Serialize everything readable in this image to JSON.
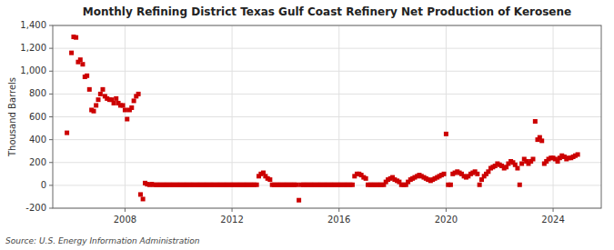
{
  "chart_data": {
    "type": "scatter",
    "title": "Monthly Refining District Texas Gulf Coast Refinery Net Production of Kerosene",
    "ylabel": "Thousand Barrels",
    "annotation": "Source: U.S. Energy Information Administration",
    "color": "#cc0000",
    "marker": "square",
    "grid": true,
    "xlim": [
      2005.3,
      2025.8
    ],
    "xticks": [
      2008,
      2012,
      2016,
      2020,
      2024
    ],
    "ylim": [
      -200,
      1400
    ],
    "yticks": [
      -200,
      0,
      200,
      400,
      600,
      800,
      {
        "value": 1000,
        "label": "1,000"
      },
      {
        "value": 1200,
        "label": "1,200"
      },
      {
        "value": 1400,
        "label": "1,400"
      }
    ],
    "x": [
      2005.83,
      2006.0,
      2006.08,
      2006.17,
      2006.25,
      2006.33,
      2006.42,
      2006.5,
      2006.58,
      2006.67,
      2006.75,
      2006.83,
      2006.92,
      2007.0,
      2007.08,
      2007.17,
      2007.25,
      2007.33,
      2007.42,
      2007.5,
      2007.58,
      2007.67,
      2007.75,
      2007.83,
      2007.92,
      2008.0,
      2008.08,
      2008.17,
      2008.25,
      2008.33,
      2008.42,
      2008.5,
      2008.58,
      2008.67,
      2008.75,
      2008.83,
      2008.92,
      2009.0,
      2009.08,
      2009.17,
      2009.25,
      2009.33,
      2009.42,
      2009.5,
      2009.58,
      2009.67,
      2009.75,
      2009.83,
      2009.92,
      2010.0,
      2010.08,
      2010.17,
      2010.25,
      2010.33,
      2010.42,
      2010.5,
      2010.58,
      2010.67,
      2010.75,
      2010.83,
      2010.92,
      2011.0,
      2011.08,
      2011.17,
      2011.25,
      2011.33,
      2011.42,
      2011.5,
      2011.58,
      2011.67,
      2011.75,
      2011.83,
      2011.92,
      2012.0,
      2012.08,
      2012.17,
      2012.25,
      2012.33,
      2012.42,
      2012.5,
      2012.58,
      2012.67,
      2012.75,
      2012.83,
      2012.92,
      2013.0,
      2013.08,
      2013.17,
      2013.25,
      2013.33,
      2013.42,
      2013.5,
      2013.58,
      2013.67,
      2013.75,
      2013.83,
      2013.92,
      2014.0,
      2014.08,
      2014.17,
      2014.25,
      2014.33,
      2014.42,
      2014.5,
      2014.58,
      2014.67,
      2014.75,
      2014.83,
      2014.92,
      2015.0,
      2015.08,
      2015.17,
      2015.25,
      2015.33,
      2015.42,
      2015.5,
      2015.58,
      2015.67,
      2015.75,
      2015.83,
      2015.92,
      2016.0,
      2016.08,
      2016.17,
      2016.25,
      2016.33,
      2016.42,
      2016.5,
      2016.58,
      2016.67,
      2016.75,
      2016.83,
      2016.92,
      2017.0,
      2017.08,
      2017.17,
      2017.25,
      2017.33,
      2017.42,
      2017.5,
      2017.58,
      2017.67,
      2017.75,
      2017.83,
      2017.92,
      2018.0,
      2018.08,
      2018.17,
      2018.25,
      2018.33,
      2018.42,
      2018.5,
      2018.58,
      2018.67,
      2018.75,
      2018.83,
      2018.92,
      2019.0,
      2019.08,
      2019.17,
      2019.25,
      2019.33,
      2019.42,
      2019.5,
      2019.58,
      2019.67,
      2019.75,
      2019.83,
      2019.92,
      2020.0,
      2020.08,
      2020.17,
      2020.25,
      2020.33,
      2020.42,
      2020.5,
      2020.58,
      2020.67,
      2020.75,
      2020.83,
      2020.92,
      2021.0,
      2021.08,
      2021.17,
      2021.25,
      2021.33,
      2021.42,
      2021.5,
      2021.58,
      2021.67,
      2021.75,
      2021.83,
      2021.92,
      2022.0,
      2022.08,
      2022.17,
      2022.25,
      2022.33,
      2022.42,
      2022.5,
      2022.58,
      2022.67,
      2022.75,
      2022.83,
      2022.92,
      2023.0,
      2023.08,
      2023.17,
      2023.25,
      2023.33,
      2023.42,
      2023.5,
      2023.58,
      2023.67,
      2023.75,
      2023.83,
      2023.92,
      2024.0,
      2024.08,
      2024.17,
      2024.25,
      2024.33,
      2024.42,
      2024.5,
      2024.58,
      2024.67,
      2024.75,
      2024.83,
      2024.92
    ],
    "values": [
      460,
      1160,
      1300,
      1295,
      1080,
      1100,
      1060,
      950,
      960,
      840,
      660,
      650,
      700,
      750,
      800,
      840,
      780,
      760,
      750,
      750,
      720,
      760,
      720,
      700,
      700,
      660,
      580,
      660,
      680,
      740,
      780,
      800,
      -80,
      -120,
      20,
      10,
      5,
      10,
      5,
      5,
      5,
      5,
      5,
      5,
      5,
      5,
      5,
      5,
      5,
      5,
      5,
      5,
      5,
      5,
      5,
      5,
      5,
      5,
      5,
      5,
      5,
      5,
      5,
      5,
      5,
      5,
      5,
      5,
      5,
      5,
      5,
      5,
      5,
      5,
      5,
      5,
      5,
      5,
      5,
      5,
      5,
      5,
      5,
      5,
      5,
      80,
      100,
      110,
      80,
      60,
      50,
      5,
      5,
      5,
      5,
      5,
      5,
      5,
      5,
      5,
      5,
      5,
      5,
      -130,
      5,
      5,
      5,
      5,
      5,
      5,
      5,
      5,
      5,
      5,
      5,
      5,
      5,
      5,
      5,
      5,
      5,
      5,
      5,
      5,
      5,
      5,
      5,
      5,
      80,
      100,
      100,
      90,
      70,
      60,
      5,
      5,
      5,
      5,
      5,
      5,
      5,
      5,
      30,
      50,
      60,
      70,
      50,
      40,
      30,
      5,
      5,
      5,
      30,
      50,
      60,
      70,
      80,
      90,
      80,
      70,
      60,
      50,
      40,
      50,
      60,
      70,
      80,
      90,
      100,
      450,
      5,
      5,
      100,
      110,
      120,
      110,
      100,
      80,
      70,
      80,
      100,
      110,
      120,
      100,
      5,
      50,
      80,
      100,
      120,
      150,
      160,
      170,
      190,
      180,
      170,
      150,
      160,
      190,
      210,
      200,
      180,
      150,
      5,
      190,
      230,
      210,
      190,
      210,
      230,
      560,
      400,
      420,
      390,
      190,
      210,
      230,
      240,
      240,
      230,
      210,
      240,
      260,
      250,
      230,
      240,
      240,
      250,
      260,
      270
    ]
  }
}
